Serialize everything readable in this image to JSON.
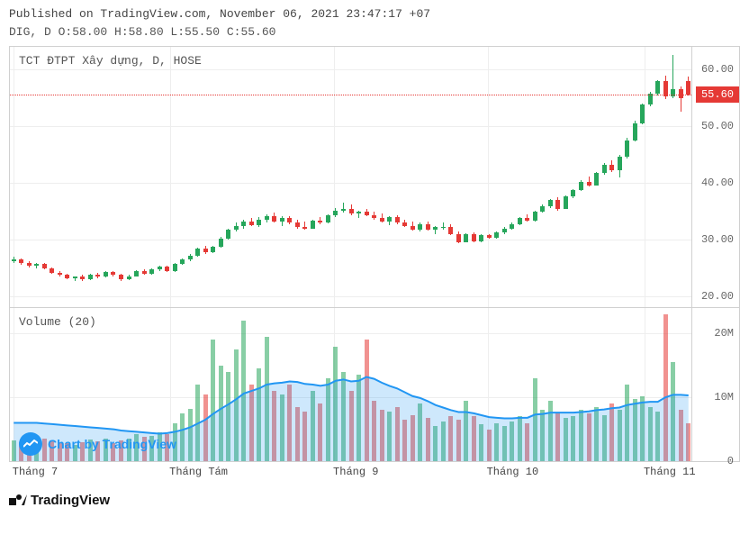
{
  "header": {
    "published_line": "Published on TradingView.com, November 06, 2021 23:47:17 +07",
    "ohlc_line": "DIG, D O:58.00 H:58.80 L:55.50 C:55.60"
  },
  "price_chart": {
    "title": "TCT ĐTPT Xây dựng, D, HOSE",
    "type": "candlestick",
    "ylim": [
      18,
      64
    ],
    "yticks": [
      20,
      30,
      40,
      50,
      60
    ],
    "ytick_labels": [
      "20.00",
      "30.00",
      "40.00",
      "50.00",
      "60.00"
    ],
    "price_line": 55.6,
    "price_tag": "55.60",
    "colors": {
      "up": "#26a65b",
      "down": "#e53935",
      "grid": "#eeeeee",
      "price_line": "#e53935",
      "background": "#ffffff"
    },
    "candles": [
      {
        "o": 26.2,
        "h": 27.0,
        "l": 26.0,
        "c": 26.5
      },
      {
        "o": 26.5,
        "h": 26.8,
        "l": 25.6,
        "c": 26.0
      },
      {
        "o": 26.0,
        "h": 26.3,
        "l": 25.2,
        "c": 25.4
      },
      {
        "o": 25.4,
        "h": 26.0,
        "l": 25.0,
        "c": 25.8
      },
      {
        "o": 25.8,
        "h": 26.0,
        "l": 24.8,
        "c": 25.0
      },
      {
        "o": 25.0,
        "h": 25.2,
        "l": 24.0,
        "c": 24.2
      },
      {
        "o": 24.2,
        "h": 24.5,
        "l": 23.5,
        "c": 23.8
      },
      {
        "o": 23.8,
        "h": 24.0,
        "l": 23.0,
        "c": 23.3
      },
      {
        "o": 23.3,
        "h": 23.6,
        "l": 22.8,
        "c": 23.5
      },
      {
        "o": 23.5,
        "h": 23.8,
        "l": 22.8,
        "c": 23.0
      },
      {
        "o": 23.0,
        "h": 24.0,
        "l": 22.9,
        "c": 23.8
      },
      {
        "o": 23.8,
        "h": 24.2,
        "l": 23.2,
        "c": 23.5
      },
      {
        "o": 23.5,
        "h": 24.5,
        "l": 23.4,
        "c": 24.3
      },
      {
        "o": 24.3,
        "h": 24.5,
        "l": 23.6,
        "c": 23.8
      },
      {
        "o": 23.8,
        "h": 24.0,
        "l": 22.8,
        "c": 23.0
      },
      {
        "o": 23.0,
        "h": 23.8,
        "l": 22.9,
        "c": 23.6
      },
      {
        "o": 23.6,
        "h": 24.6,
        "l": 23.5,
        "c": 24.5
      },
      {
        "o": 24.5,
        "h": 24.9,
        "l": 23.8,
        "c": 24.0
      },
      {
        "o": 24.0,
        "h": 25.0,
        "l": 23.9,
        "c": 24.8
      },
      {
        "o": 24.8,
        "h": 25.5,
        "l": 24.5,
        "c": 25.3
      },
      {
        "o": 25.3,
        "h": 25.5,
        "l": 24.3,
        "c": 24.5
      },
      {
        "o": 24.5,
        "h": 26.0,
        "l": 24.4,
        "c": 25.8
      },
      {
        "o": 25.8,
        "h": 26.8,
        "l": 25.6,
        "c": 26.6
      },
      {
        "o": 26.6,
        "h": 27.5,
        "l": 26.3,
        "c": 27.2
      },
      {
        "o": 27.2,
        "h": 28.6,
        "l": 27.0,
        "c": 28.4
      },
      {
        "o": 28.4,
        "h": 29.0,
        "l": 27.5,
        "c": 27.8
      },
      {
        "o": 27.8,
        "h": 29.0,
        "l": 27.6,
        "c": 28.8
      },
      {
        "o": 28.8,
        "h": 30.5,
        "l": 28.6,
        "c": 30.2
      },
      {
        "o": 30.2,
        "h": 32.0,
        "l": 30.0,
        "c": 31.8
      },
      {
        "o": 31.8,
        "h": 33.0,
        "l": 31.5,
        "c": 32.5
      },
      {
        "o": 32.5,
        "h": 33.5,
        "l": 32.0,
        "c": 33.2
      },
      {
        "o": 33.2,
        "h": 33.8,
        "l": 32.4,
        "c": 32.6
      },
      {
        "o": 32.6,
        "h": 34.0,
        "l": 32.2,
        "c": 33.5
      },
      {
        "o": 33.5,
        "h": 34.5,
        "l": 33.0,
        "c": 34.2
      },
      {
        "o": 34.2,
        "h": 34.8,
        "l": 33.0,
        "c": 33.2
      },
      {
        "o": 33.2,
        "h": 34.2,
        "l": 32.5,
        "c": 33.8
      },
      {
        "o": 33.8,
        "h": 34.2,
        "l": 32.8,
        "c": 33.0
      },
      {
        "o": 33.0,
        "h": 33.5,
        "l": 32.0,
        "c": 32.3
      },
      {
        "o": 32.3,
        "h": 33.2,
        "l": 31.8,
        "c": 32.0
      },
      {
        "o": 32.0,
        "h": 33.6,
        "l": 31.9,
        "c": 33.4
      },
      {
        "o": 33.4,
        "h": 34.0,
        "l": 32.8,
        "c": 33.0
      },
      {
        "o": 33.0,
        "h": 34.5,
        "l": 32.9,
        "c": 34.3
      },
      {
        "o": 34.3,
        "h": 35.6,
        "l": 34.0,
        "c": 35.2
      },
      {
        "o": 35.2,
        "h": 36.5,
        "l": 34.8,
        "c": 35.5
      },
      {
        "o": 35.5,
        "h": 36.2,
        "l": 34.4,
        "c": 34.6
      },
      {
        "o": 34.6,
        "h": 35.2,
        "l": 33.8,
        "c": 35.0
      },
      {
        "o": 35.0,
        "h": 35.5,
        "l": 34.2,
        "c": 34.4
      },
      {
        "o": 34.4,
        "h": 35.0,
        "l": 33.6,
        "c": 33.8
      },
      {
        "o": 33.8,
        "h": 34.6,
        "l": 33.0,
        "c": 33.2
      },
      {
        "o": 33.2,
        "h": 34.2,
        "l": 32.6,
        "c": 34.0
      },
      {
        "o": 34.0,
        "h": 34.4,
        "l": 32.8,
        "c": 33.0
      },
      {
        "o": 33.0,
        "h": 33.5,
        "l": 32.2,
        "c": 32.4
      },
      {
        "o": 32.4,
        "h": 33.2,
        "l": 31.6,
        "c": 31.8
      },
      {
        "o": 31.8,
        "h": 33.0,
        "l": 31.5,
        "c": 32.8
      },
      {
        "o": 32.8,
        "h": 33.2,
        "l": 31.6,
        "c": 31.8
      },
      {
        "o": 31.8,
        "h": 32.4,
        "l": 31.0,
        "c": 32.2
      },
      {
        "o": 32.2,
        "h": 33.0,
        "l": 31.8,
        "c": 32.3
      },
      {
        "o": 32.3,
        "h": 32.8,
        "l": 30.8,
        "c": 31.0
      },
      {
        "o": 31.0,
        "h": 31.5,
        "l": 29.4,
        "c": 29.6
      },
      {
        "o": 29.6,
        "h": 31.2,
        "l": 29.5,
        "c": 31.0
      },
      {
        "o": 31.0,
        "h": 31.4,
        "l": 29.5,
        "c": 29.8
      },
      {
        "o": 29.8,
        "h": 31.0,
        "l": 29.6,
        "c": 30.8
      },
      {
        "o": 30.8,
        "h": 31.0,
        "l": 30.2,
        "c": 30.4
      },
      {
        "o": 30.4,
        "h": 31.5,
        "l": 30.2,
        "c": 31.3
      },
      {
        "o": 31.3,
        "h": 32.2,
        "l": 31.0,
        "c": 32.0
      },
      {
        "o": 32.0,
        "h": 33.0,
        "l": 31.8,
        "c": 32.8
      },
      {
        "o": 32.8,
        "h": 34.0,
        "l": 32.6,
        "c": 33.8
      },
      {
        "o": 33.8,
        "h": 34.5,
        "l": 33.2,
        "c": 33.4
      },
      {
        "o": 33.4,
        "h": 35.2,
        "l": 33.3,
        "c": 35.0
      },
      {
        "o": 35.0,
        "h": 36.2,
        "l": 34.8,
        "c": 36.0
      },
      {
        "o": 36.0,
        "h": 37.2,
        "l": 35.6,
        "c": 37.0
      },
      {
        "o": 37.0,
        "h": 37.5,
        "l": 35.2,
        "c": 35.5
      },
      {
        "o": 35.5,
        "h": 37.8,
        "l": 35.4,
        "c": 37.6
      },
      {
        "o": 37.6,
        "h": 39.0,
        "l": 37.4,
        "c": 38.8
      },
      {
        "o": 38.8,
        "h": 40.5,
        "l": 38.6,
        "c": 40.2
      },
      {
        "o": 40.2,
        "h": 41.2,
        "l": 39.4,
        "c": 39.6
      },
      {
        "o": 39.6,
        "h": 42.0,
        "l": 39.5,
        "c": 41.8
      },
      {
        "o": 41.8,
        "h": 43.5,
        "l": 41.5,
        "c": 43.2
      },
      {
        "o": 43.2,
        "h": 44.0,
        "l": 42.0,
        "c": 42.3
      },
      {
        "o": 42.3,
        "h": 45.0,
        "l": 41.0,
        "c": 44.6
      },
      {
        "o": 44.6,
        "h": 48.0,
        "l": 44.4,
        "c": 47.5
      },
      {
        "o": 47.5,
        "h": 51.0,
        "l": 47.3,
        "c": 50.5
      },
      {
        "o": 50.5,
        "h": 54.0,
        "l": 50.3,
        "c": 53.8
      },
      {
        "o": 53.8,
        "h": 56.0,
        "l": 53.5,
        "c": 55.8
      },
      {
        "o": 55.8,
        "h": 58.2,
        "l": 55.5,
        "c": 58.0
      },
      {
        "o": 58.0,
        "h": 59.0,
        "l": 54.8,
        "c": 55.2
      },
      {
        "o": 55.2,
        "h": 62.5,
        "l": 55.0,
        "c": 56.5
      },
      {
        "o": 56.5,
        "h": 57.0,
        "l": 52.5,
        "c": 55.0
      },
      {
        "o": 58.0,
        "h": 58.8,
        "l": 55.5,
        "c": 55.6
      }
    ]
  },
  "volume_chart": {
    "title": "Volume (20)",
    "type": "bar",
    "ylim": [
      0,
      24000000
    ],
    "yticks": [
      0,
      10000000,
      20000000
    ],
    "ytick_labels": [
      "0",
      "10M",
      "20M"
    ],
    "colors": {
      "up": "#26a65b",
      "down": "#e53935",
      "ma_line": "#2196f3",
      "ma_fill": "#2196f3"
    },
    "values": [
      3.2,
      3.0,
      2.8,
      3.1,
      3.5,
      3.3,
      3.0,
      2.8,
      2.6,
      2.9,
      3.4,
      3.1,
      3.6,
      2.8,
      3.2,
      3.5,
      4.2,
      3.8,
      4.0,
      4.5,
      4.2,
      6.0,
      7.5,
      8.2,
      12.0,
      10.5,
      19.0,
      15.0,
      14.0,
      17.5,
      22.0,
      12.0,
      14.5,
      19.5,
      11.0,
      10.5,
      12.0,
      8.5,
      7.8,
      11.0,
      9.0,
      13.0,
      18.0,
      14.0,
      11.0,
      13.5,
      19.0,
      9.5,
      8.0,
      7.8,
      8.5,
      6.5,
      7.2,
      9.0,
      6.8,
      5.5,
      6.2,
      7.0,
      6.5,
      9.5,
      7.0,
      5.8,
      5.0,
      6.0,
      5.5,
      6.2,
      7.0,
      6.0,
      13.0,
      8.0,
      9.5,
      7.5,
      6.8,
      7.0,
      8.0,
      7.5,
      8.5,
      7.2,
      9.0,
      8.0,
      12.0,
      9.8,
      10.2,
      8.5,
      7.8,
      23.0,
      15.5,
      8.0,
      6.0
    ],
    "ma20": [
      6.0,
      6.0,
      6.0,
      6.0,
      5.9,
      5.8,
      5.7,
      5.6,
      5.5,
      5.4,
      5.3,
      5.2,
      5.1,
      5.0,
      4.8,
      4.7,
      4.6,
      4.5,
      4.4,
      4.3,
      4.4,
      4.6,
      4.9,
      5.3,
      5.9,
      6.5,
      7.4,
      8.2,
      8.9,
      9.7,
      10.6,
      11.0,
      11.4,
      12.0,
      12.2,
      12.3,
      12.5,
      12.4,
      12.1,
      12.0,
      11.8,
      12.0,
      12.6,
      12.8,
      12.5,
      12.6,
      13.2,
      12.9,
      12.3,
      11.8,
      11.4,
      10.8,
      10.2,
      9.9,
      9.4,
      8.8,
      8.4,
      8.0,
      7.7,
      7.7,
      7.5,
      7.2,
      6.9,
      6.8,
      6.7,
      6.7,
      6.8,
      6.8,
      7.3,
      7.4,
      7.6,
      7.6,
      7.6,
      7.6,
      7.7,
      7.8,
      8.0,
      8.1,
      8.3,
      8.4,
      8.8,
      9.0,
      9.2,
      9.3,
      9.3,
      10.0,
      10.4,
      10.4,
      10.3
    ],
    "watermark": "Chart by TradingView"
  },
  "xaxis": {
    "ticks": [
      {
        "pos": 0.005,
        "label": "Tháng 7"
      },
      {
        "pos": 0.235,
        "label": "Tháng Tám"
      },
      {
        "pos": 0.475,
        "label": "Tháng 9"
      },
      {
        "pos": 0.7,
        "label": "Tháng 10"
      },
      {
        "pos": 0.93,
        "label": "Tháng 11"
      }
    ]
  },
  "footer": {
    "brand": "TradingView"
  }
}
